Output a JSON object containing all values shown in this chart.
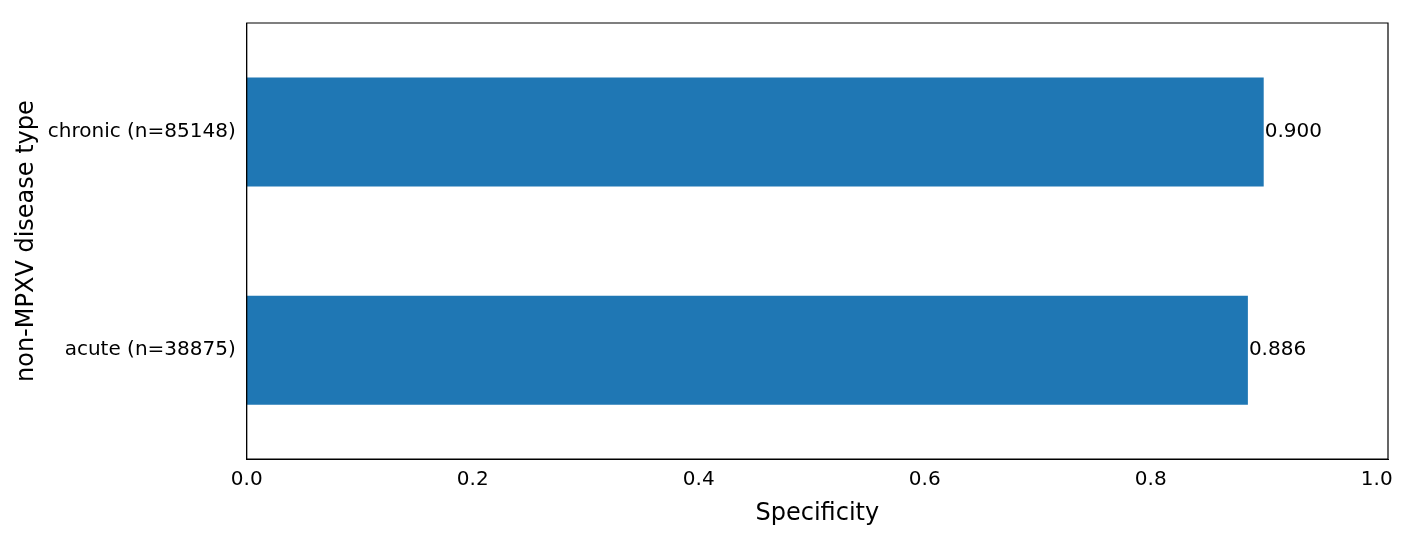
{
  "chart_data": {
    "type": "bar",
    "orientation": "horizontal",
    "xlabel": "Specificity",
    "ylabel": "non-MPXV disease type",
    "categories": [
      "chronic (n=85148)",
      "acute (n=38875)"
    ],
    "values": [
      0.9,
      0.886
    ],
    "value_labels": [
      "0.900",
      "0.886"
    ],
    "color": "#1f77b4",
    "xlim": [
      0,
      1.01
    ],
    "xticks": [
      {
        "value": 0,
        "label": "0.0"
      },
      {
        "value": 0.2,
        "label": "0.2"
      },
      {
        "value": 0.4,
        "label": "0.4"
      },
      {
        "value": 0.6,
        "label": "0.6"
      },
      {
        "value": 0.8,
        "label": "0.8"
      },
      {
        "value": 1,
        "label": "1.0"
      }
    ],
    "grid": false,
    "legend": false
  }
}
